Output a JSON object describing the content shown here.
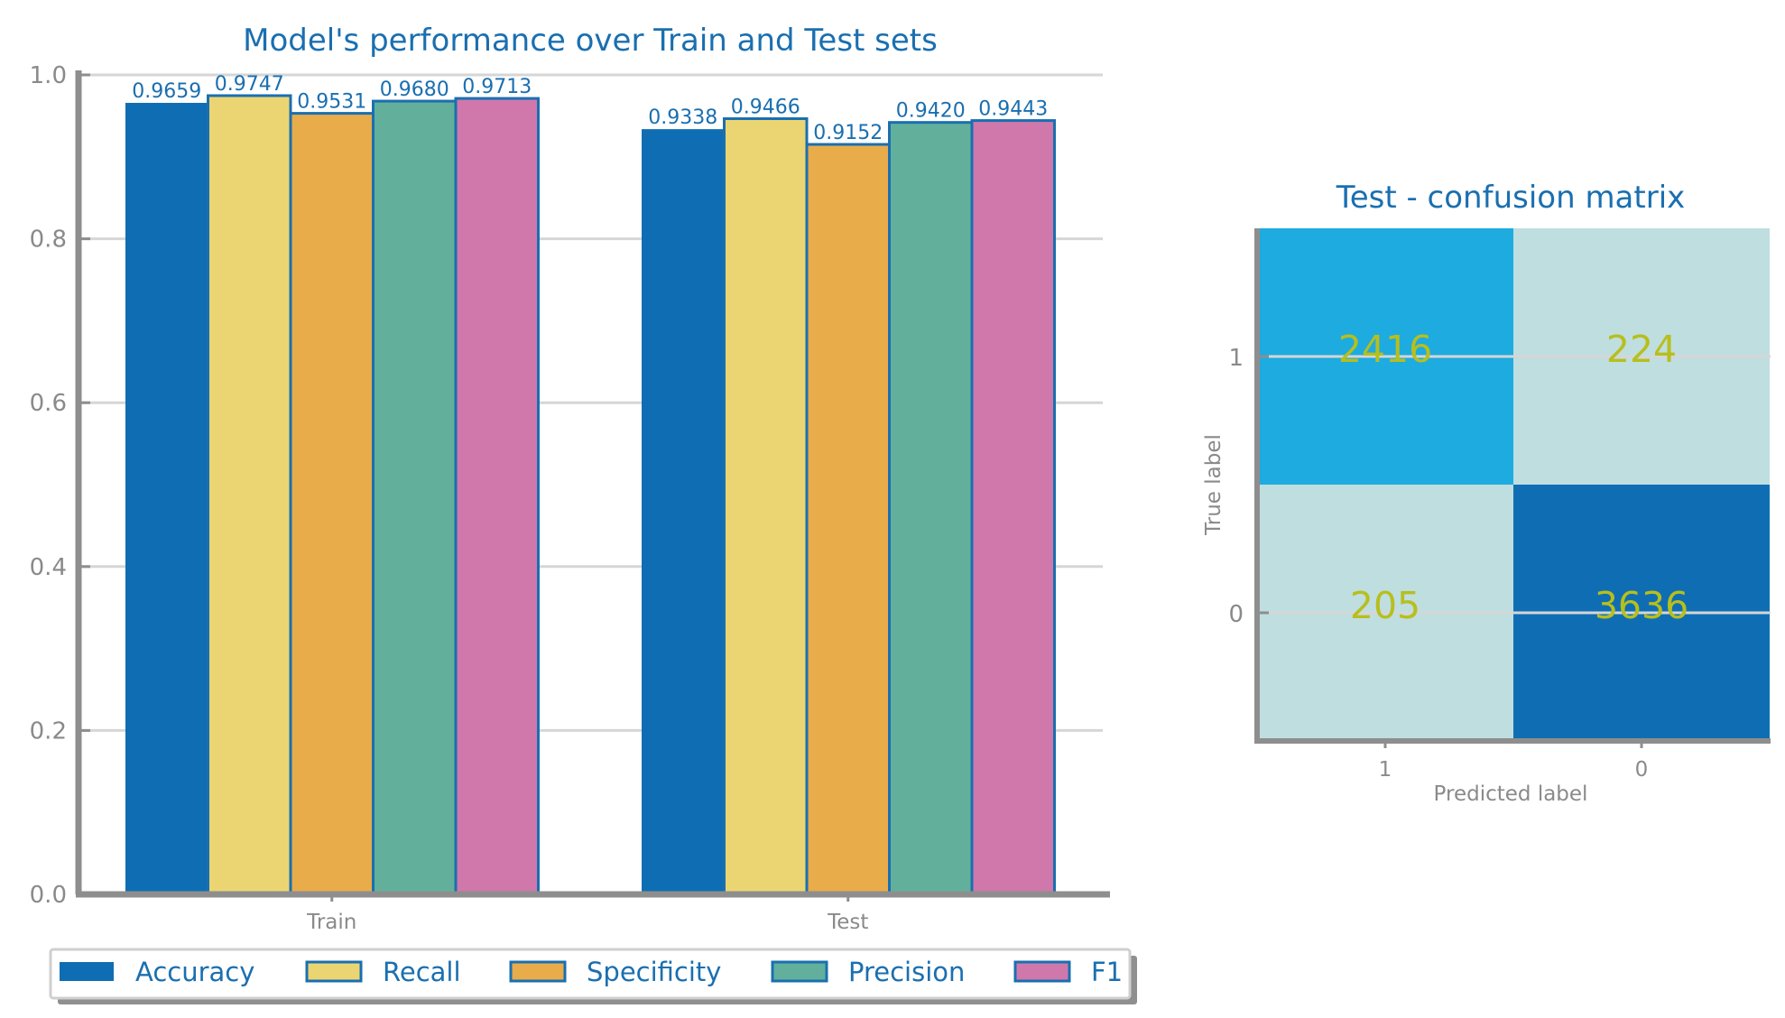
{
  "chart_data": [
    {
      "type": "bar",
      "title": "Model's performance over Train and Test sets",
      "categories": [
        "Train",
        "Test"
      ],
      "ylim": [
        0,
        1.0
      ],
      "yticks": [
        "0.0",
        "0.2",
        "0.4",
        "0.6",
        "0.8",
        "1.0"
      ],
      "grid": true,
      "legend_position": "bottom",
      "series": [
        {
          "name": "Accuracy",
          "color": "#0f6eb3",
          "values": [
            0.9659,
            0.9338
          ],
          "labels": [
            "0.9659",
            "0.9338"
          ]
        },
        {
          "name": "Recall",
          "color": "#ebd573",
          "values": [
            0.9747,
            0.9466
          ],
          "labels": [
            "0.9747",
            "0.9466"
          ]
        },
        {
          "name": "Specificity",
          "color": "#e8ac4b",
          "values": [
            0.9531,
            0.9152
          ],
          "labels": [
            "0.9531",
            "0.9152"
          ]
        },
        {
          "name": "Precision",
          "color": "#62b09b",
          "values": [
            0.968,
            0.942
          ],
          "labels": [
            "0.9680",
            "0.9420"
          ]
        },
        {
          "name": "F1",
          "color": "#d078ab",
          "values": [
            0.9713,
            0.9443
          ],
          "labels": [
            "0.9713",
            "0.9443"
          ]
        }
      ]
    },
    {
      "type": "heatmap",
      "title": "Test - confusion matrix",
      "xlabel": "Predicted label",
      "ylabel": "True label",
      "x_ticks": [
        "1",
        "0"
      ],
      "y_ticks": [
        "1",
        "0"
      ],
      "matrix": [
        [
          2416,
          224
        ],
        [
          205,
          3636
        ]
      ],
      "cell_colors": [
        [
          "#1dabe0",
          "#bfdee0"
        ],
        [
          "#bfdee0",
          "#0f6eb3"
        ]
      ],
      "value_color": "#b7bf1c"
    }
  ]
}
